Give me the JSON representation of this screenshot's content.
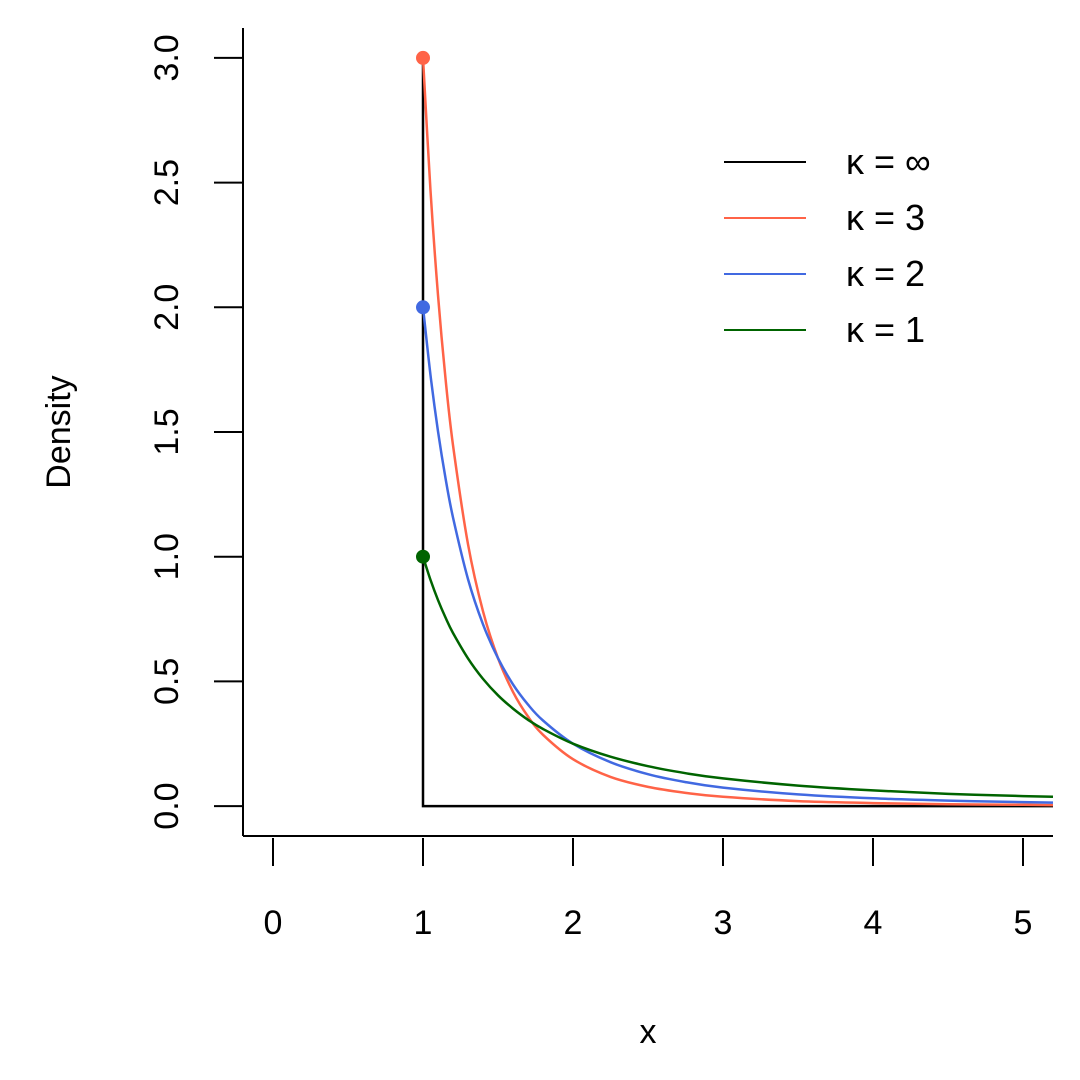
{
  "chart_data": {
    "type": "line",
    "xlabel": "x",
    "ylabel": "Density",
    "xlim": [
      -0.2,
      5.2
    ],
    "ylim": [
      -0.12,
      3.12
    ],
    "x_ticks": [
      {
        "value": 0,
        "label": "0"
      },
      {
        "value": 1,
        "label": "1"
      },
      {
        "value": 2,
        "label": "2"
      },
      {
        "value": 3,
        "label": "3"
      },
      {
        "value": 4,
        "label": "4"
      },
      {
        "value": 5,
        "label": "5"
      }
    ],
    "y_ticks": [
      {
        "value": 0.0,
        "label": "0.0"
      },
      {
        "value": 0.5,
        "label": "0.5"
      },
      {
        "value": 1.0,
        "label": "1.0"
      },
      {
        "value": 1.5,
        "label": "1.5"
      },
      {
        "value": 2.0,
        "label": "2.0"
      },
      {
        "value": 2.5,
        "label": "2.5"
      },
      {
        "value": 3.0,
        "label": "3.0"
      }
    ],
    "grid": false,
    "legend_position": "top-right",
    "series": [
      {
        "name": "κ = ∞",
        "color": "#000000",
        "x": [
          1.0,
          1.0,
          5.2
        ],
        "y": [
          3.0,
          0.0,
          0.0
        ]
      },
      {
        "name": "κ = 3",
        "color": "#FF6347",
        "x": [
          1.0,
          1.05,
          1.1,
          1.15,
          1.2,
          1.3,
          1.4,
          1.5,
          1.6,
          1.7,
          1.8,
          2.0,
          2.25,
          2.5,
          2.75,
          3.0,
          3.5,
          4.0,
          4.5,
          5.0,
          5.2
        ],
        "y": [
          3.0,
          2.468,
          2.049,
          1.715,
          1.447,
          1.05,
          0.781,
          0.593,
          0.458,
          0.359,
          0.286,
          0.188,
          0.117,
          0.077,
          0.053,
          0.037,
          0.02,
          0.012,
          0.007,
          0.005,
          0.004
        ],
        "endpoint_marker": {
          "x": 1.0,
          "y": 3.0
        }
      },
      {
        "name": "κ = 2",
        "color": "#4169E1",
        "x": [
          1.0,
          1.05,
          1.1,
          1.15,
          1.2,
          1.3,
          1.4,
          1.5,
          1.6,
          1.7,
          1.8,
          2.0,
          2.25,
          2.5,
          2.75,
          3.0,
          3.5,
          4.0,
          4.5,
          5.0,
          5.2
        ],
        "y": [
          2.0,
          1.728,
          1.503,
          1.315,
          1.157,
          0.91,
          0.729,
          0.593,
          0.488,
          0.407,
          0.343,
          0.25,
          0.176,
          0.128,
          0.096,
          0.074,
          0.047,
          0.031,
          0.022,
          0.016,
          0.014
        ],
        "endpoint_marker": {
          "x": 1.0,
          "y": 2.0
        }
      },
      {
        "name": "κ = 1",
        "color": "#006400",
        "x": [
          1.0,
          1.05,
          1.1,
          1.15,
          1.2,
          1.3,
          1.4,
          1.5,
          1.6,
          1.7,
          1.8,
          2.0,
          2.25,
          2.5,
          2.75,
          3.0,
          3.5,
          4.0,
          4.5,
          5.0,
          5.2
        ],
        "y": [
          1.0,
          0.907,
          0.826,
          0.756,
          0.694,
          0.592,
          0.51,
          0.444,
          0.391,
          0.346,
          0.309,
          0.25,
          0.198,
          0.16,
          0.132,
          0.111,
          0.082,
          0.063,
          0.049,
          0.04,
          0.037
        ],
        "endpoint_marker": {
          "x": 1.0,
          "y": 1.0
        }
      }
    ]
  }
}
